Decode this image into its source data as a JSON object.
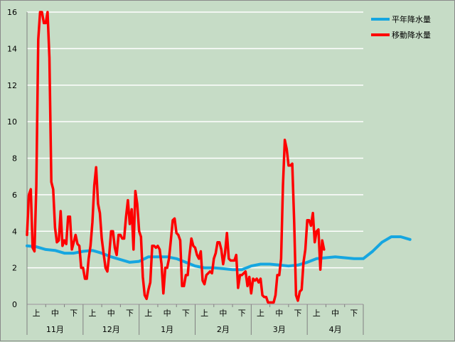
{
  "chart_data": {
    "type": "line",
    "ylim": [
      0,
      16
    ],
    "yticks": [
      "0",
      "2",
      "4",
      "6",
      "8",
      "10",
      "12",
      "14",
      "16"
    ],
    "x_count": 180,
    "period_ticks": [
      "上",
      "中",
      "下"
    ],
    "months": [
      "11月",
      "12月",
      "1月",
      "2月",
      "3月",
      "4月"
    ],
    "grid": "horizontal",
    "legend_position": "top-right",
    "series": [
      {
        "name": "平年降水量",
        "color": "#16a6e0",
        "points": [
          [
            0,
            3.2
          ],
          [
            5,
            3.15
          ],
          [
            10,
            3.0
          ],
          [
            15,
            2.95
          ],
          [
            20,
            2.8
          ],
          [
            25,
            2.8
          ],
          [
            30,
            2.9
          ],
          [
            35,
            2.95
          ],
          [
            40,
            2.8
          ],
          [
            45,
            2.6
          ],
          [
            50,
            2.45
          ],
          [
            55,
            2.3
          ],
          [
            60,
            2.35
          ],
          [
            65,
            2.6
          ],
          [
            70,
            2.6
          ],
          [
            75,
            2.6
          ],
          [
            80,
            2.5
          ],
          [
            85,
            2.3
          ],
          [
            90,
            2.1
          ],
          [
            95,
            2.0
          ],
          [
            100,
            2.0
          ],
          [
            105,
            1.95
          ],
          [
            110,
            1.9
          ],
          [
            115,
            1.9
          ],
          [
            120,
            2.1
          ],
          [
            125,
            2.2
          ],
          [
            130,
            2.2
          ],
          [
            135,
            2.15
          ],
          [
            140,
            2.1
          ],
          [
            145,
            2.15
          ],
          [
            150,
            2.3
          ],
          [
            155,
            2.5
          ],
          [
            160,
            2.55
          ],
          [
            165,
            2.6
          ],
          [
            170,
            2.55
          ],
          [
            175,
            2.5
          ],
          [
            180,
            2.5
          ],
          [
            185,
            2.9
          ],
          [
            190,
            3.4
          ],
          [
            195,
            3.7
          ],
          [
            200,
            3.7
          ],
          [
            205,
            3.55
          ]
        ]
      },
      {
        "name": "移動降水量",
        "color": "#ff0000",
        "points": [
          [
            0,
            3.8
          ],
          [
            1,
            6.0
          ],
          [
            2,
            6.3
          ],
          [
            3,
            3.1
          ],
          [
            4,
            2.9
          ],
          [
            5,
            6.5
          ],
          [
            6,
            14.5
          ],
          [
            7,
            16
          ],
          [
            8,
            16
          ],
          [
            9,
            15.4
          ],
          [
            10,
            15.4
          ],
          [
            11,
            16
          ],
          [
            12,
            13.5
          ],
          [
            13,
            6.7
          ],
          [
            14,
            6.3
          ],
          [
            15,
            4.2
          ],
          [
            16,
            3.4
          ],
          [
            17,
            3.5
          ],
          [
            18,
            5.1
          ],
          [
            19,
            3.2
          ],
          [
            20,
            3.5
          ],
          [
            21,
            3.3
          ],
          [
            22,
            4.8
          ],
          [
            23,
            4.8
          ],
          [
            24,
            3.0
          ],
          [
            25,
            3.4
          ],
          [
            26,
            3.8
          ],
          [
            27,
            3.3
          ],
          [
            28,
            3.2
          ],
          [
            29,
            2.0
          ],
          [
            30,
            2.0
          ],
          [
            31,
            1.4
          ],
          [
            32,
            1.4
          ],
          [
            33,
            2.5
          ],
          [
            34,
            3.2
          ],
          [
            35,
            4.5
          ],
          [
            36,
            6.5
          ],
          [
            37,
            7.5
          ],
          [
            38,
            5.5
          ],
          [
            39,
            5.0
          ],
          [
            40,
            3.6
          ],
          [
            41,
            2.8
          ],
          [
            42,
            2.0
          ],
          [
            43,
            1.8
          ],
          [
            44,
            2.7
          ],
          [
            45,
            4.0
          ],
          [
            46,
            4.0
          ],
          [
            47,
            3.1
          ],
          [
            48,
            2.7
          ],
          [
            49,
            3.8
          ],
          [
            50,
            3.8
          ],
          [
            51,
            3.6
          ],
          [
            52,
            3.6
          ],
          [
            53,
            4.8
          ],
          [
            54,
            5.7
          ],
          [
            55,
            4.4
          ],
          [
            56,
            5.2
          ],
          [
            57,
            3.0
          ],
          [
            58,
            6.2
          ],
          [
            59,
            5.5
          ],
          [
            60,
            4.0
          ],
          [
            61,
            3.7
          ],
          [
            62,
            1.5
          ],
          [
            63,
            0.5
          ],
          [
            64,
            0.3
          ],
          [
            65,
            0.8
          ],
          [
            66,
            1.2
          ],
          [
            67,
            3.2
          ],
          [
            68,
            3.2
          ],
          [
            69,
            3.1
          ],
          [
            70,
            3.2
          ],
          [
            71,
            3.0
          ],
          [
            72,
            2.2
          ],
          [
            73,
            0.6
          ],
          [
            74,
            2.0
          ],
          [
            75,
            2.0
          ],
          [
            76,
            2.5
          ],
          [
            77,
            3.5
          ],
          [
            78,
            4.6
          ],
          [
            79,
            4.7
          ],
          [
            80,
            3.9
          ],
          [
            81,
            3.8
          ],
          [
            82,
            3.5
          ],
          [
            83,
            1.0
          ],
          [
            84,
            1.0
          ],
          [
            85,
            1.6
          ],
          [
            86,
            1.6
          ],
          [
            87,
            2.7
          ],
          [
            88,
            3.6
          ],
          [
            89,
            3.2
          ],
          [
            90,
            3.1
          ],
          [
            91,
            2.7
          ],
          [
            92,
            2.5
          ],
          [
            93,
            2.9
          ],
          [
            94,
            1.3
          ],
          [
            95,
            1.1
          ],
          [
            96,
            1.6
          ],
          [
            97,
            1.7
          ],
          [
            98,
            1.8
          ],
          [
            99,
            1.7
          ],
          [
            100,
            2.5
          ],
          [
            101,
            2.8
          ],
          [
            102,
            3.4
          ],
          [
            103,
            3.4
          ],
          [
            104,
            3.0
          ],
          [
            105,
            2.2
          ],
          [
            106,
            2.8
          ],
          [
            107,
            3.9
          ],
          [
            108,
            2.5
          ],
          [
            109,
            2.4
          ],
          [
            110,
            2.4
          ],
          [
            111,
            2.4
          ],
          [
            112,
            2.7
          ],
          [
            113,
            0.9
          ],
          [
            114,
            1.6
          ],
          [
            115,
            1.6
          ],
          [
            116,
            1.7
          ],
          [
            117,
            1.8
          ],
          [
            118,
            1.0
          ],
          [
            119,
            1.5
          ],
          [
            120,
            0.6
          ],
          [
            121,
            1.4
          ],
          [
            122,
            1.3
          ],
          [
            123,
            1.4
          ],
          [
            124,
            1.2
          ],
          [
            125,
            1.4
          ],
          [
            126,
            0.5
          ],
          [
            127,
            0.4
          ],
          [
            128,
            0.4
          ],
          [
            129,
            0.1
          ],
          [
            130,
            0.1
          ],
          [
            131,
            0.1
          ],
          [
            132,
            0.1
          ],
          [
            133,
            0.5
          ],
          [
            134,
            1.6
          ],
          [
            135,
            1.6
          ],
          [
            136,
            2.5
          ],
          [
            137,
            6.5
          ],
          [
            138,
            9.0
          ],
          [
            139,
            8.5
          ],
          [
            140,
            7.6
          ],
          [
            141,
            7.6
          ],
          [
            142,
            7.7
          ],
          [
            143,
            4.5
          ],
          [
            144,
            0.5
          ],
          [
            145,
            0.2
          ],
          [
            146,
            0.7
          ],
          [
            147,
            0.8
          ],
          [
            148,
            2.3
          ],
          [
            149,
            3.0
          ],
          [
            150,
            4.6
          ],
          [
            151,
            4.6
          ],
          [
            152,
            4.3
          ],
          [
            153,
            5.0
          ],
          [
            154,
            3.4
          ],
          [
            155,
            4.0
          ],
          [
            156,
            4.1
          ],
          [
            157,
            1.9
          ],
          [
            158,
            3.5
          ],
          [
            159,
            3.0
          ]
        ]
      }
    ]
  }
}
